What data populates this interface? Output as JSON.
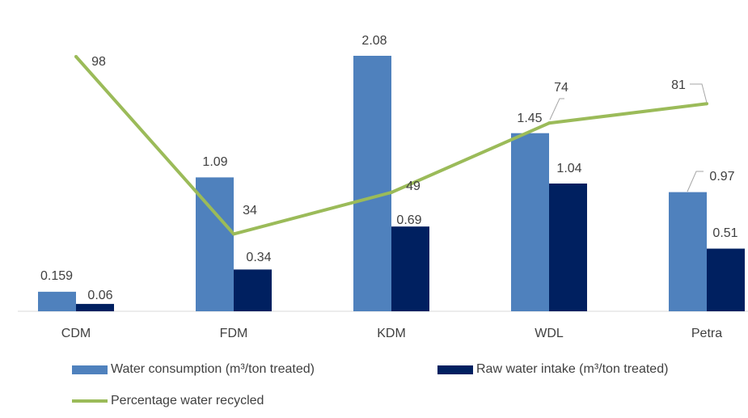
{
  "chart_data": {
    "type": "bar",
    "categories": [
      "CDM",
      "FDM",
      "KDM",
      "WDL",
      "Petra"
    ],
    "series": [
      {
        "name": "Water consumption (m³/ton treated)",
        "kind": "bar",
        "color": "#4f81bd",
        "values": [
          0.159,
          1.09,
          2.08,
          1.45,
          0.97
        ],
        "labels": [
          "0.159",
          "1.09",
          "2.08",
          "1.45",
          "0.97"
        ]
      },
      {
        "name": "Raw water intake (m³/ton treated)",
        "kind": "bar",
        "color": "#002060",
        "values": [
          0.06,
          0.34,
          0.69,
          1.04,
          0.51
        ],
        "labels": [
          "0.06",
          "0.34",
          "0.69",
          "1.04",
          "0.51"
        ]
      },
      {
        "name": "Percentage water recycled",
        "kind": "line",
        "color": "#9bbb59",
        "axis": "secondary",
        "values": [
          98,
          34,
          49,
          74,
          81
        ],
        "labels": [
          "98",
          "34",
          "49",
          "74",
          "81"
        ]
      }
    ],
    "ylim": [
      0,
      2.08
    ],
    "y2lim": [
      0,
      98
    ],
    "grid": false,
    "legend": "bottom"
  }
}
